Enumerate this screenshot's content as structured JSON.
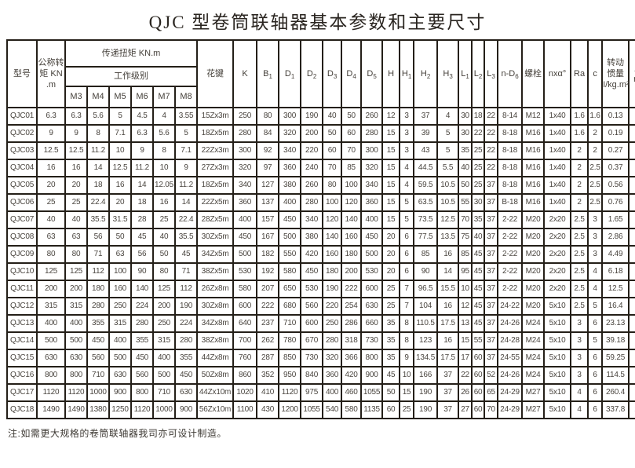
{
  "page_title": "QJC 型卷筒联轴器基本参数和主要尺寸",
  "footnote": "注:如需更大规格的卷筒联轴器我司亦可设计制造。",
  "table": {
    "header": {
      "model": "型号",
      "nominal_torque": "公称转矩 KN .m",
      "transmitted_torque": "传递扭矩 KN.m",
      "work_grade": "工作级别",
      "grades": [
        "M3",
        "M4",
        "M5",
        "M6",
        "M7",
        "M8"
      ],
      "dims": [
        "K",
        "B_1",
        "D_1",
        "D_2",
        "D_3",
        "D_4",
        "D_5",
        "H",
        "H_1",
        "H_2",
        "H_3",
        "L_1",
        "L_2",
        "L_3",
        "n-D_6"
      ],
      "spline": "花键",
      "bolt": "螺栓",
      "angle": "nxα°",
      "ra": "Ra",
      "c": "c",
      "inertia": "转动惯量 I/kg.m²",
      "mass": "质量 m/kg"
    },
    "rows": [
      [
        "QJC01",
        "6.3",
        "6.3",
        "5.6",
        "5",
        "4.5",
        "4",
        "3.55",
        "15Zx3m",
        "250",
        "80",
        "300",
        "190",
        "40",
        "50",
        "260",
        "12",
        "3",
        "37",
        "4",
        "30",
        "18",
        "22",
        "8-14",
        "M12",
        "1x40",
        "1.6",
        "1.6",
        "0.13",
        "18.9"
      ],
      [
        "QJC02",
        "9",
        "9",
        "8",
        "7.1",
        "6.3",
        "5.6",
        "5",
        "18Zx5m",
        "280",
        "84",
        "320",
        "200",
        "50",
        "60",
        "280",
        "15",
        "3",
        "39",
        "5",
        "30",
        "22",
        "22",
        "8-18",
        "M16",
        "1x40",
        "1.6",
        "2",
        "0.19",
        "22.6"
      ],
      [
        "QJC03",
        "12.5",
        "12.5",
        "11.2",
        "10",
        "9",
        "8",
        "7.1",
        "22Zx3m",
        "300",
        "92",
        "340",
        "220",
        "60",
        "70",
        "300",
        "15",
        "3",
        "43",
        "5",
        "35",
        "25",
        "22",
        "8-18",
        "M16",
        "1x40",
        "2",
        "2",
        "0.27",
        "28"
      ],
      [
        "QJC04",
        "16",
        "16",
        "14",
        "12.5",
        "11.2",
        "10",
        "9",
        "27Zx3m",
        "320",
        "97",
        "360",
        "240",
        "70",
        "85",
        "320",
        "15",
        "4",
        "44.5",
        "5.5",
        "40",
        "25",
        "22",
        "8-18",
        "M16",
        "1x40",
        "2",
        "2.5",
        "0.37",
        "32.8"
      ],
      [
        "QJC05",
        "20",
        "20",
        "18",
        "16",
        "14",
        "12.05",
        "11.2",
        "18Zx5m",
        "340",
        "127",
        "380",
        "260",
        "80",
        "100",
        "340",
        "15",
        "4",
        "59.5",
        "10.5",
        "50",
        "25",
        "37",
        "8-18",
        "M16",
        "1x40",
        "2",
        "2.5",
        "0.56",
        "47"
      ],
      [
        "QJC06",
        "25",
        "25",
        "22.4",
        "20",
        "18",
        "16",
        "14",
        "22Zx5m",
        "360",
        "137",
        "400",
        "280",
        "100",
        "120",
        "360",
        "15",
        "5",
        "63.5",
        "10.5",
        "55",
        "30",
        "37",
        "B-18",
        "M16",
        "1x40",
        "2",
        "2.5",
        "0.76",
        "57"
      ],
      [
        "QJC07",
        "40",
        "40",
        "35.5",
        "31.5",
        "28",
        "25",
        "22.4",
        "28Zx5m",
        "400",
        "157",
        "450",
        "340",
        "120",
        "140",
        "400",
        "15",
        "5",
        "73.5",
        "12.5",
        "70",
        "35",
        "37",
        "2-22",
        "M20",
        "2x20",
        "2.5",
        "3",
        "1.65",
        "90"
      ],
      [
        "QJC08",
        "63",
        "63",
        "56",
        "50",
        "45",
        "40",
        "35.5",
        "30Zx5m",
        "450",
        "167",
        "500",
        "380",
        "140",
        "160",
        "450",
        "20",
        "6",
        "77.5",
        "13.5",
        "75",
        "40",
        "37",
        "2-22",
        "M20",
        "2x20",
        "2.5",
        "3",
        "2.86",
        "122"
      ],
      [
        "QJC09",
        "80",
        "80",
        "71",
        "63",
        "56",
        "50",
        "45",
        "34Zx5m",
        "500",
        "182",
        "550",
        "420",
        "160",
        "180",
        "500",
        "20",
        "6",
        "85",
        "16",
        "85",
        "45",
        "37",
        "2-22",
        "M20",
        "2x20",
        "2.5",
        "3",
        "4.49",
        "157"
      ],
      [
        "QJC10",
        "125",
        "125",
        "112",
        "100",
        "90",
        "80",
        "71",
        "38Zx5m",
        "530",
        "192",
        "580",
        "450",
        "180",
        "200",
        "530",
        "20",
        "6",
        "90",
        "14",
        "95",
        "45",
        "37",
        "2-22",
        "M20",
        "2x20",
        "2.5",
        "4",
        "6.18",
        "190"
      ],
      [
        "QJC11",
        "200",
        "200",
        "180",
        "160",
        "140",
        "125",
        "112",
        "26Zx8m",
        "580",
        "207",
        "650",
        "530",
        "190",
        "222",
        "600",
        "25",
        "7",
        "96.5",
        "15.5",
        "10",
        "45",
        "37",
        "2-22",
        "M20",
        "2x20",
        "2.5",
        "4",
        "12.5",
        "290"
      ],
      [
        "QJC12",
        "315",
        "315",
        "280",
        "250",
        "224",
        "200",
        "190",
        "30Zx8m",
        "600",
        "222",
        "680",
        "560",
        "220",
        "254",
        "630",
        "25",
        "7",
        "104",
        "16",
        "12",
        "45",
        "37",
        "24-22",
        "M20",
        "5x10",
        "2.5",
        "5",
        "16.4",
        "335"
      ],
      [
        "QJC13",
        "400",
        "400",
        "355",
        "315",
        "280",
        "250",
        "224",
        "34Zx8m",
        "640",
        "237",
        "710",
        "600",
        "250",
        "286",
        "660",
        "35",
        "8",
        "110.5",
        "17.5",
        "13",
        "45",
        "37",
        "24-26",
        "M24",
        "5x10",
        "3",
        "6",
        "23.13",
        "393"
      ],
      [
        "QJC14",
        "500",
        "500",
        "450",
        "400",
        "355",
        "315",
        "280",
        "38Zx8m",
        "700",
        "262",
        "780",
        "670",
        "280",
        "318",
        "730",
        "35",
        "8",
        "123",
        "16",
        "15",
        "55",
        "37",
        "24-28",
        "M24",
        "5x10",
        "3",
        "5",
        "39.18",
        "551"
      ],
      [
        "QJC15",
        "630",
        "630",
        "560",
        "500",
        "450",
        "400",
        "355",
        "44Zx8m",
        "760",
        "287",
        "850",
        "730",
        "320",
        "366",
        "800",
        "35",
        "9",
        "134.5",
        "17.5",
        "17",
        "60",
        "37",
        "24-55",
        "M24",
        "5x10",
        "3",
        "6",
        "59.25",
        "693"
      ],
      [
        "QJC16",
        "800",
        "800",
        "710",
        "630",
        "560",
        "500",
        "450",
        "50Zx8m",
        "860",
        "352",
        "950",
        "840",
        "360",
        "420",
        "900",
        "45",
        "10",
        "166",
        "37",
        "22",
        "60",
        "52",
        "24-26",
        "M24",
        "5x10",
        "3",
        "6",
        "114.5",
        "1250"
      ],
      [
        "QJC17",
        "1120",
        "1120",
        "1000",
        "900",
        "800",
        "710",
        "630",
        "44Zx10m",
        "1020",
        "410",
        "1120",
        "975",
        "400",
        "460",
        "1055",
        "50",
        "15",
        "190",
        "37",
        "26",
        "60",
        "65",
        "24-29",
        "M27",
        "5x10",
        "4",
        "6",
        "260.4",
        "1950"
      ],
      [
        "QJC18",
        "1490",
        "1490",
        "1380",
        "1250",
        "1120",
        "1000",
        "900",
        "56Zx10m",
        "1100",
        "430",
        "1200",
        "1055",
        "540",
        "580",
        "1135",
        "60",
        "25",
        "190",
        "37",
        "27",
        "60",
        "70",
        "24-29",
        "M27",
        "5x10",
        "4",
        "6",
        "337.8",
        "2250"
      ]
    ]
  }
}
